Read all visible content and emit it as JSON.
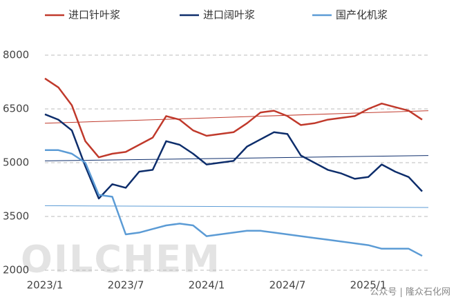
{
  "chart_data": {
    "type": "line",
    "categories": [
      "2023/1",
      null,
      null,
      null,
      null,
      null,
      "2023/7",
      null,
      null,
      null,
      null,
      null,
      "2024/1",
      null,
      null,
      null,
      null,
      null,
      "2024/7",
      null,
      null,
      null,
      null,
      null,
      "2025/1",
      null,
      null,
      null,
      null
    ],
    "series": [
      {
        "name": "进口针叶浆",
        "color": "#c0392b",
        "values": [
          7350,
          7100,
          6600,
          5600,
          5150,
          5250,
          5300,
          5500,
          5700,
          6300,
          6200,
          5900,
          5750,
          5800,
          5850,
          6100,
          6400,
          6450,
          6300,
          6050,
          6100,
          6200,
          6250,
          6300,
          6500,
          6650,
          6550,
          6450,
          6200
        ],
        "trend": [
          6100,
          6450
        ]
      },
      {
        "name": "进口阔叶浆",
        "color": "#0d2d6b",
        "values": [
          6350,
          6200,
          5900,
          4900,
          4000,
          4400,
          4300,
          4750,
          4800,
          5600,
          5500,
          5250,
          4950,
          5000,
          5050,
          5450,
          5650,
          5850,
          5800,
          5200,
          5000,
          4800,
          4700,
          4550,
          4600,
          4950,
          4750,
          4600,
          4200
        ],
        "trend": [
          5050,
          5200
        ]
      },
      {
        "name": "国产化机浆",
        "color": "#5b9bd5",
        "values": [
          5350,
          5350,
          5250,
          5000,
          4100,
          4050,
          3000,
          3050,
          3150,
          3250,
          3300,
          3250,
          2950,
          3000,
          3050,
          3100,
          3100,
          3050,
          3000,
          2950,
          2900,
          2850,
          2800,
          2750,
          2700,
          2600,
          2600,
          2600,
          2400
        ],
        "trend": [
          3800,
          3750
        ]
      }
    ],
    "ylim": [
      2000,
      8000
    ],
    "yticks": [
      2000,
      3500,
      5000,
      6500,
      8000
    ],
    "grid": true,
    "watermark": "OILCHEM",
    "source": "公众号 | 隆众石化网"
  }
}
